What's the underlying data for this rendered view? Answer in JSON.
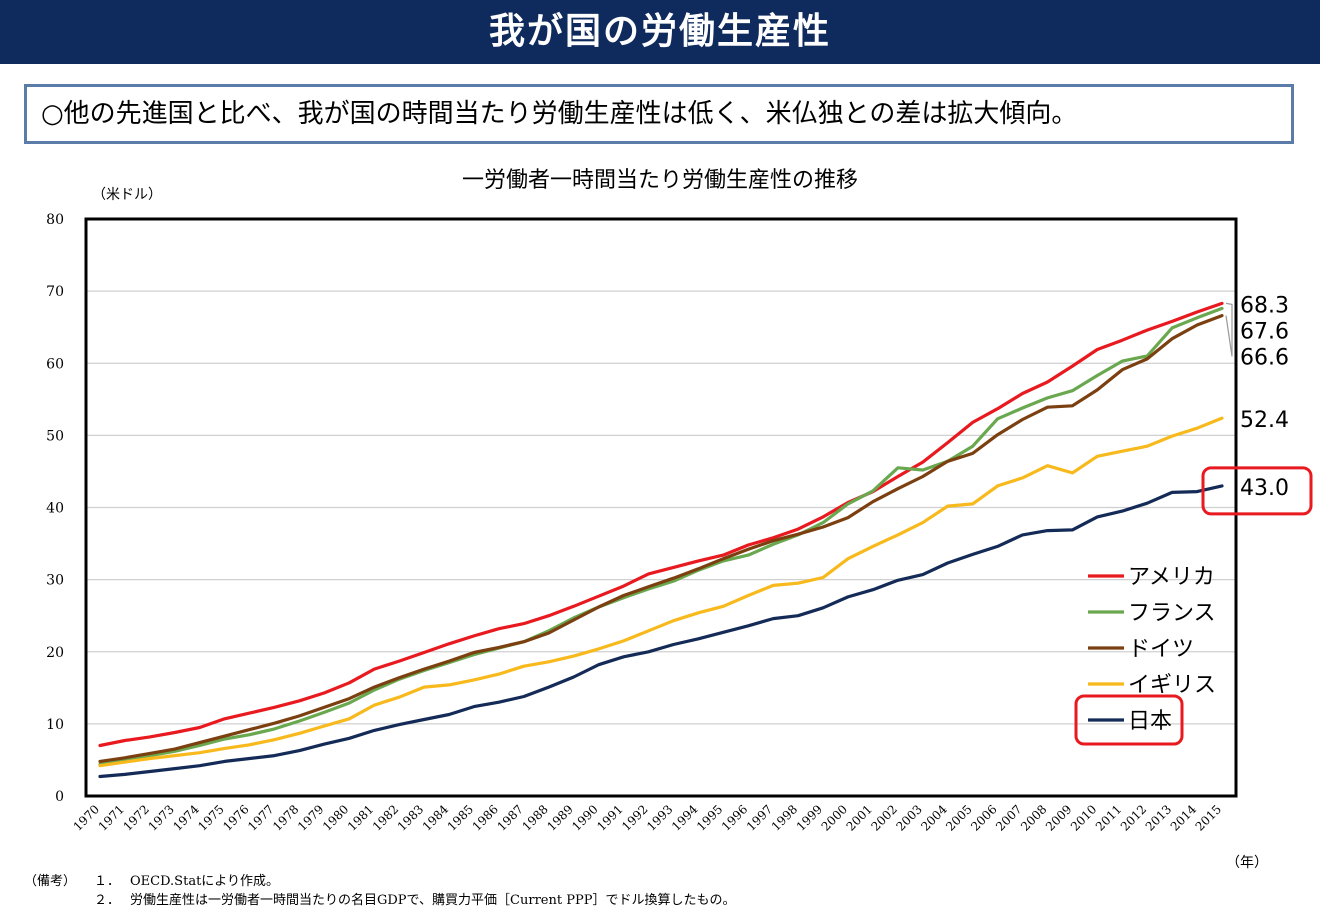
{
  "header": {
    "title": "我が国の労働生産性"
  },
  "summary": {
    "text": "○他の先進国と比べ、我が国の時間当たり労働生産性は低く、米仏独との差は拡大傾向。"
  },
  "notes": {
    "label": "（備考）",
    "items": [
      {
        "num": "１．",
        "text": "OECD.Statにより作成。"
      },
      {
        "num": "２．",
        "text": "労働生産性は一労働者一時間当たりの名目GDPで、購買力平価［Current PPP］でドル換算したもの。"
      }
    ]
  },
  "chart_data": {
    "type": "line",
    "title": "一労働者一時間当たり労働生産性の推移",
    "ylabel": "（米ドル）",
    "xlabel": "（年）",
    "ylim": [
      0,
      80
    ],
    "yticks": [
      0,
      10,
      20,
      30,
      40,
      50,
      60,
      70,
      80
    ],
    "grid": true,
    "legend_position": "bottom-right",
    "x": [
      "1970",
      "1971",
      "1972",
      "1973",
      "1974",
      "1975",
      "1976",
      "1977",
      "1978",
      "1979",
      "1980",
      "1981",
      "1982",
      "1983",
      "1984",
      "1985",
      "1986",
      "1987",
      "1988",
      "1989",
      "1990",
      "1991",
      "1992",
      "1993",
      "1994",
      "1995",
      "1996",
      "1997",
      "1998",
      "1999",
      "2000",
      "2001",
      "2002",
      "2003",
      "2004",
      "2005",
      "2006",
      "2007",
      "2008",
      "2009",
      "2010",
      "2011",
      "2012",
      "2013",
      "2014",
      "2015"
    ],
    "series": [
      {
        "name": "アメリカ",
        "color": "#e8191f",
        "values": [
          7.0,
          7.7,
          8.2,
          8.8,
          9.5,
          10.7,
          11.5,
          12.3,
          13.2,
          14.3,
          15.7,
          17.6,
          18.7,
          19.9,
          21.1,
          22.2,
          23.2,
          23.9,
          25.0,
          26.3,
          27.7,
          29.1,
          30.8,
          31.7,
          32.6,
          33.4,
          34.8,
          35.8,
          37.0,
          38.7,
          40.7,
          42.2,
          44.3,
          46.3,
          49.0,
          51.8,
          53.7,
          55.8,
          57.4,
          59.6,
          61.9,
          63.2,
          64.6,
          65.8,
          67.1,
          68.3
        ]
      },
      {
        "name": "フランス",
        "color": "#6aa84f",
        "values": [
          4.4,
          5.0,
          5.6,
          6.2,
          7.0,
          7.9,
          8.5,
          9.3,
          10.4,
          11.6,
          12.9,
          14.7,
          16.2,
          17.4,
          18.5,
          19.6,
          20.5,
          21.4,
          22.9,
          24.7,
          26.2,
          27.5,
          28.7,
          29.8,
          31.3,
          32.6,
          33.4,
          34.9,
          36.2,
          37.9,
          40.5,
          42.3,
          45.5,
          45.2,
          46.4,
          48.5,
          52.3,
          53.8,
          55.2,
          56.2,
          58.3,
          60.3,
          61.0,
          64.9,
          66.3,
          67.6
        ]
      },
      {
        "name": "ドイツ",
        "color": "#7b3f10",
        "values": [
          4.8,
          5.3,
          5.9,
          6.5,
          7.4,
          8.3,
          9.2,
          10.1,
          11.1,
          12.3,
          13.5,
          15.1,
          16.4,
          17.6,
          18.7,
          19.9,
          20.6,
          21.4,
          22.6,
          24.4,
          26.2,
          27.8,
          29.0,
          30.2,
          31.5,
          32.9,
          34.2,
          35.4,
          36.3,
          37.3,
          38.6,
          40.8,
          42.6,
          44.3,
          46.4,
          47.5,
          50.1,
          52.2,
          53.9,
          54.1,
          56.3,
          59.1,
          60.6,
          63.4,
          65.3,
          66.6
        ]
      },
      {
        "name": "イギリス",
        "color": "#f7b91c",
        "values": [
          4.2,
          4.7,
          5.2,
          5.6,
          6.0,
          6.6,
          7.1,
          7.8,
          8.7,
          9.7,
          10.7,
          12.6,
          13.7,
          15.1,
          15.4,
          16.1,
          16.9,
          18.0,
          18.6,
          19.4,
          20.4,
          21.5,
          22.9,
          24.3,
          25.4,
          26.3,
          27.8,
          29.2,
          29.5,
          30.3,
          32.9,
          34.6,
          36.2,
          37.9,
          40.2,
          40.5,
          43.0,
          44.1,
          45.8,
          44.8,
          47.1,
          47.8,
          48.5,
          49.9,
          51.0,
          52.4
        ]
      },
      {
        "name": "日本",
        "color": "#142b58",
        "values": [
          2.7,
          3.0,
          3.4,
          3.8,
          4.2,
          4.8,
          5.2,
          5.6,
          6.3,
          7.2,
          8.0,
          9.1,
          9.9,
          10.6,
          11.3,
          12.4,
          13.0,
          13.8,
          15.1,
          16.5,
          18.2,
          19.3,
          20.0,
          21.0,
          21.8,
          22.7,
          23.6,
          24.6,
          25.0,
          26.1,
          27.6,
          28.6,
          29.9,
          30.7,
          32.3,
          33.5,
          34.6,
          36.2,
          36.8,
          36.9,
          38.7,
          39.5,
          40.6,
          42.1,
          42.2,
          43.0
        ]
      }
    ],
    "end_labels": [
      {
        "series": "アメリカ",
        "text": "68.3"
      },
      {
        "series": "フランス",
        "text": "67.6"
      },
      {
        "series": "ドイツ",
        "text": "66.6"
      },
      {
        "series": "イギリス",
        "text": "52.4"
      },
      {
        "series": "日本",
        "text": "43.0"
      }
    ],
    "highlight_color": "#e8191f"
  }
}
